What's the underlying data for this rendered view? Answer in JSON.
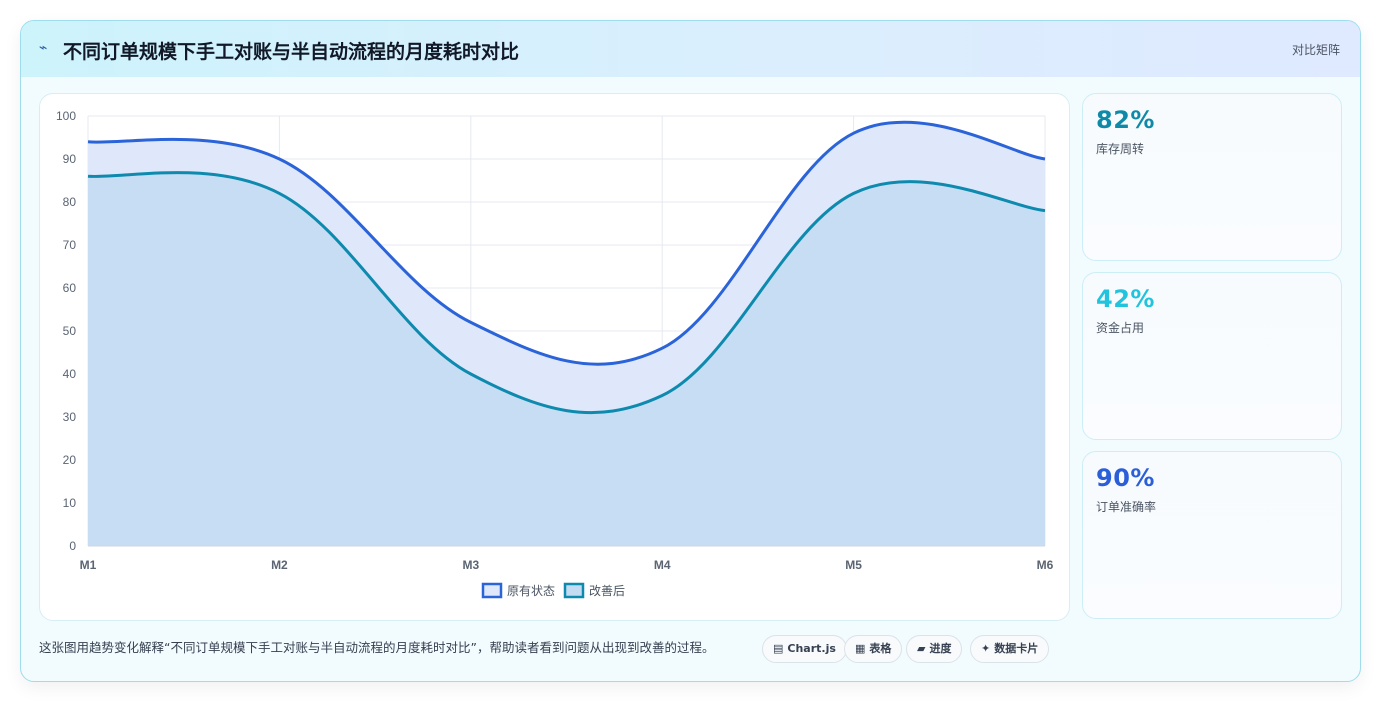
{
  "header": {
    "icon": "wave-icon",
    "title": "不同订单规模下手工对账与半自动流程的月度耗时对比",
    "tag": "对比矩阵"
  },
  "chart_data": {
    "type": "area",
    "categories": [
      "M1",
      "M2",
      "M3",
      "M4",
      "M5",
      "M6"
    ],
    "series": [
      {
        "name": "原有状态",
        "values": [
          94,
          90,
          52,
          46,
          96,
          90
        ],
        "color": "#2b63d9",
        "fill": "#dfe8fb"
      },
      {
        "name": "改善后",
        "values": [
          86,
          82,
          40,
          35,
          82,
          78
        ],
        "color": "#0e8aae",
        "fill": "#c4dcf2"
      }
    ],
    "ylim": [
      0,
      100
    ],
    "yticks": [
      "0",
      "10",
      "20",
      "30",
      "40",
      "50",
      "60",
      "70",
      "80",
      "90",
      "100"
    ],
    "grid": true,
    "legend": "bottom-center",
    "xlabel": "",
    "ylabel": ""
  },
  "kpis": [
    {
      "value": "82%",
      "label": "库存周转",
      "color": "#0e8aa8"
    },
    {
      "value": "42%",
      "label": "资金占用",
      "color": "#22c3dd"
    },
    {
      "value": "90%",
      "label": "订单准确率",
      "color": "#2b5fd9"
    }
  ],
  "footer": {
    "text": "这张图用趋势变化解释“不同订单规模下手工对账与半自动流程的月度耗时对比”，帮助读者看到问题从出现到改善的过程。",
    "pills": [
      {
        "icon": "▤",
        "label": "Chart.js"
      },
      {
        "icon": "▦",
        "label": "表格"
      },
      {
        "icon": "▰",
        "label": "进度"
      },
      {
        "icon": "✦",
        "label": "数据卡片"
      }
    ]
  }
}
